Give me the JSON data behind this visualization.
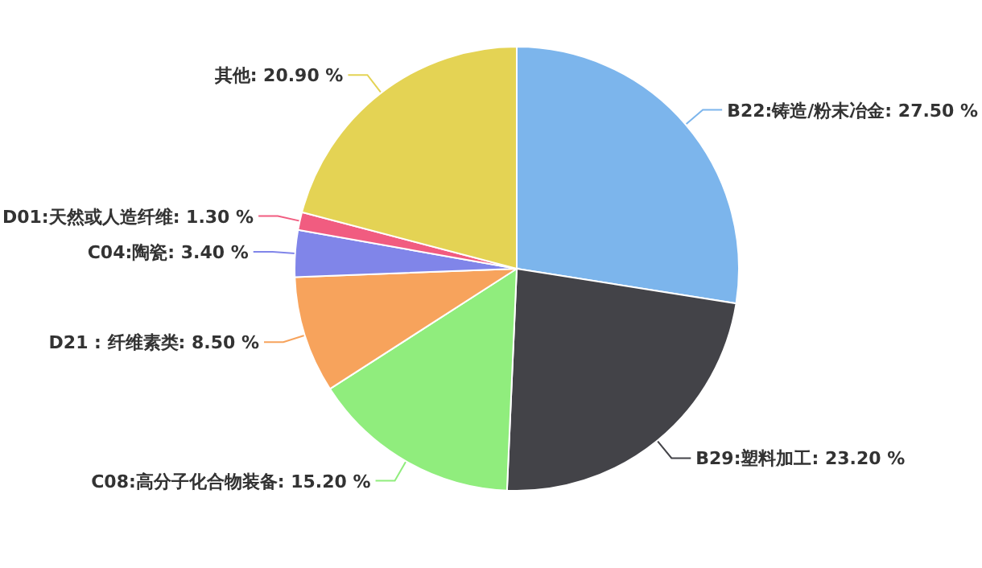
{
  "chart_data": {
    "type": "pie",
    "categories": [
      "B22:铸造/粉末冶金",
      "B29:塑料加工",
      "C08:高分子化合物装备",
      "D21 : 纤维素类",
      "C04:陶瓷",
      "D01:天然或人造纤维",
      "其他"
    ],
    "values": [
      27.5,
      23.2,
      15.2,
      8.5,
      3.4,
      1.3,
      20.9
    ],
    "value_labels": [
      "27.50 %",
      "23.20 %",
      "15.20 %",
      "8.50 %",
      "3.40 %",
      "1.30 %",
      "20.90 %"
    ],
    "colors": [
      "#7cb5ec",
      "#434348",
      "#90ed7d",
      "#f7a35c",
      "#8085e9",
      "#f15c80",
      "#e4d354"
    ]
  }
}
